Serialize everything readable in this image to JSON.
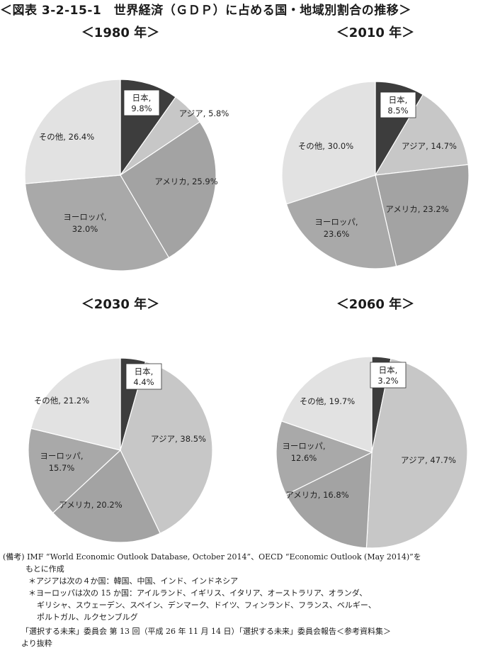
{
  "title": "＜図表 3-2-15-1　世界経済（ＧＤＰ）に占める国・地域別割合の推移＞",
  "colors": {
    "japan": "#3d3d3d",
    "asia": "#c7c7c7",
    "america": "#a3a3a3",
    "europe": "#a9a9a9",
    "other": "#e2e2e2"
  },
  "chart_data": [
    {
      "type": "pie",
      "title": "＜1980 年＞",
      "slices": [
        {
          "label": "日本,",
          "value": 9.8,
          "value_label": "9.8%",
          "key": "japan",
          "boxed": true
        },
        {
          "label": "アジア,",
          "value": 5.8,
          "value_label": "5.8%",
          "key": "asia"
        },
        {
          "label": "アメリカ,",
          "value": 25.9,
          "value_label": "25.9%",
          "key": "america"
        },
        {
          "label": "ヨーロッパ,",
          "value": 32.0,
          "value_label": "32.0%",
          "key": "europe"
        },
        {
          "label": "その他,",
          "value": 26.4,
          "value_label": "26.4%",
          "key": "other"
        }
      ]
    },
    {
      "type": "pie",
      "title": "＜2010 年＞",
      "slices": [
        {
          "label": "日本,",
          "value": 8.5,
          "value_label": "8.5%",
          "key": "japan",
          "boxed": true
        },
        {
          "label": "アジア,",
          "value": 14.7,
          "value_label": "14.7%",
          "key": "asia"
        },
        {
          "label": "アメリカ,",
          "value": 23.2,
          "value_label": "23.2%",
          "key": "america"
        },
        {
          "label": "ヨーロッパ,",
          "value": 23.6,
          "value_label": "23.6%",
          "key": "europe"
        },
        {
          "label": "その他,",
          "value": 30.0,
          "value_label": "30.0%",
          "key": "other"
        }
      ]
    },
    {
      "type": "pie",
      "title": "＜2030 年＞",
      "slices": [
        {
          "label": "日本,",
          "value": 4.4,
          "value_label": "4.4%",
          "key": "japan",
          "boxed": true
        },
        {
          "label": "アジア,",
          "value": 38.5,
          "value_label": "38.5%",
          "key": "asia"
        },
        {
          "label": "アメリカ,",
          "value": 20.2,
          "value_label": "20.2%",
          "key": "america"
        },
        {
          "label": "ヨーロッパ,",
          "value": 15.7,
          "value_label": "15.7%",
          "key": "europe"
        },
        {
          "label": "その他,",
          "value": 21.2,
          "value_label": "21.2%",
          "key": "other"
        }
      ]
    },
    {
      "type": "pie",
      "title": "＜2060 年＞",
      "slices": [
        {
          "label": "日本,",
          "value": 3.2,
          "value_label": "3.2%",
          "key": "japan",
          "boxed": true
        },
        {
          "label": "アジア,",
          "value": 47.7,
          "value_label": "47.7%",
          "key": "asia"
        },
        {
          "label": "アメリカ,",
          "value": 16.8,
          "value_label": "16.8%",
          "key": "america"
        },
        {
          "label": "ヨーロッパ,",
          "value": 12.6,
          "value_label": "12.6%",
          "key": "europe"
        },
        {
          "label": "その他,",
          "value": 19.7,
          "value_label": "19.7%",
          "key": "other"
        }
      ]
    }
  ],
  "notes": {
    "line1": "(備考) IMF “World Economic Outlook Database, October 2014”、OECD “Economic Outlook (May 2014)”を",
    "line2": "もとに作成",
    "line3": "＊アジアは次の４か国：韓国、中国、インド、インドネシア",
    "line4": "＊ヨーロッパは次の 15 か国：アイルランド、イギリス、イタリア、オーストラリア、オランダ、",
    "line5": "ギリシャ、スウェーデン、スペイン、デンマーク、ドイツ、フィンランド、フランス、ベルギー、",
    "line6": "ポルトガル、ルクセンブルグ",
    "line7": "「選択する未来」委員会 第 13 回（平成 26 年 11 月 14 日）「選択する未来」委員会報告＜参考資料集＞",
    "line8": "より抜粋"
  }
}
